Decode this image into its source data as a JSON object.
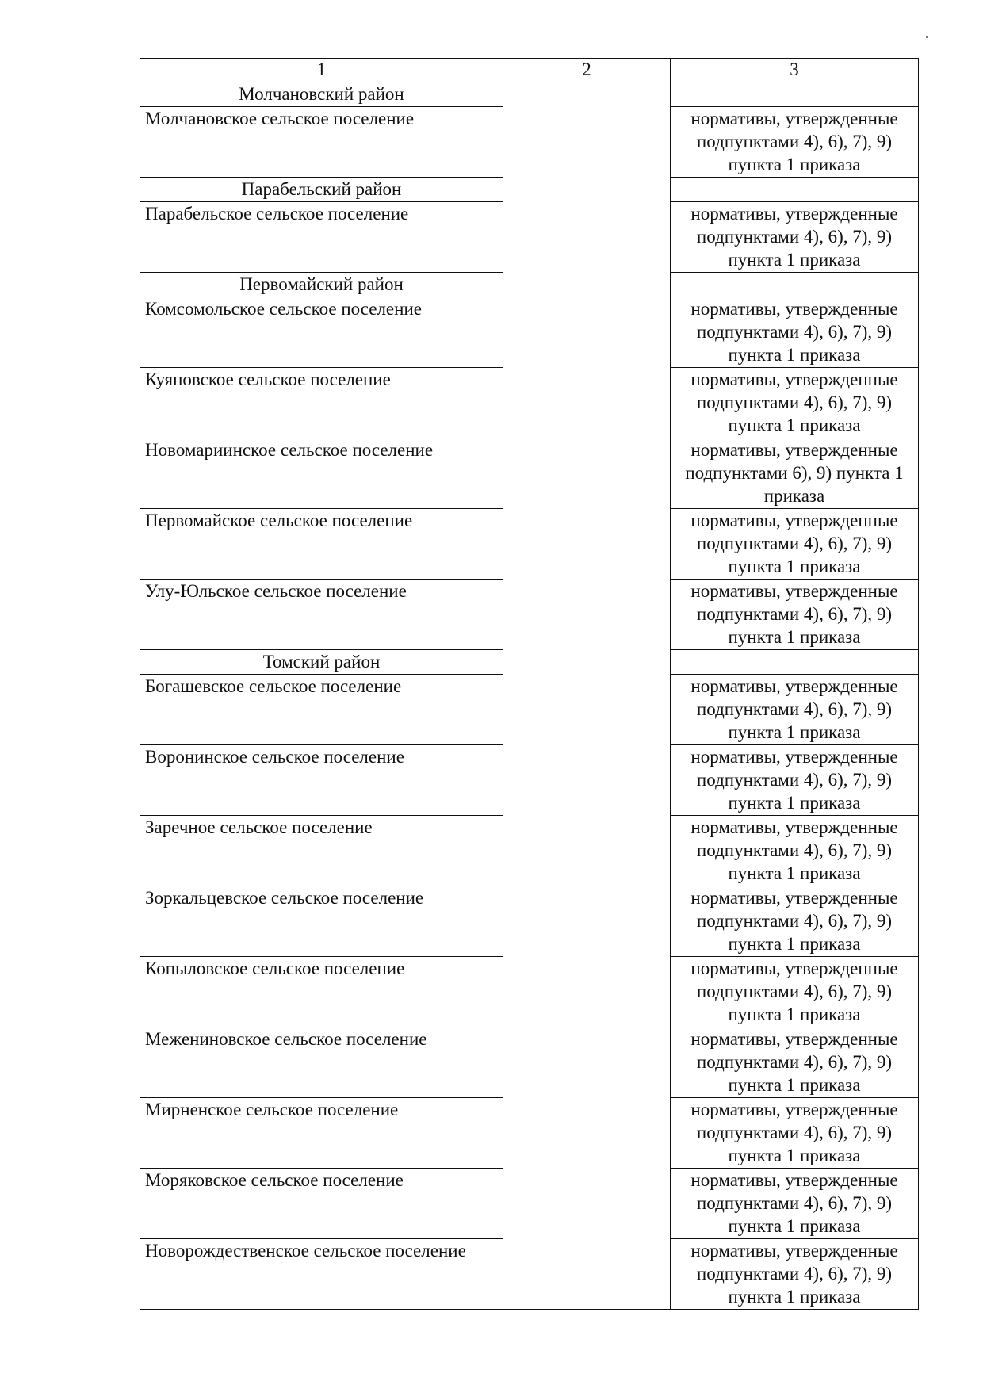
{
  "header": [
    "1",
    "2",
    "3"
  ],
  "rows": [
    {
      "type": "district",
      "name": "Молчановский район"
    },
    {
      "type": "data",
      "name": "Молчановское сельское поселение",
      "norm": "нормативы, утвержденные подпунктами 4), 6), 7), 9) пункта 1 приказа"
    },
    {
      "type": "district",
      "name": "Парабельский район"
    },
    {
      "type": "data",
      "name": "Парабельское сельское поселение",
      "norm": "нормативы, утвержденные подпунктами 4), 6), 7), 9) пункта 1 приказа"
    },
    {
      "type": "district",
      "name": "Первомайский район"
    },
    {
      "type": "data",
      "name": "Комсомольское сельское поселение",
      "norm": "нормативы, утвержденные подпунктами 4), 6), 7), 9) пункта 1 приказа"
    },
    {
      "type": "data",
      "name": "Куяновское сельское поселение",
      "norm": "нормативы, утвержденные подпунктами 4), 6), 7), 9) пункта 1 приказа"
    },
    {
      "type": "data",
      "name": "Новомариинское сельское поселение",
      "norm": "нормативы, утвержденные подпунктами 6), 9) пункта 1 приказа"
    },
    {
      "type": "data",
      "name": "Первомайское сельское поселение",
      "norm": "нормативы, утвержденные подпунктами 4), 6), 7), 9) пункта 1 приказа"
    },
    {
      "type": "data",
      "name": "Улу-Юльское сельское поселение",
      "norm": "нормативы, утвержденные подпунктами 4), 6), 7), 9) пункта 1 приказа"
    },
    {
      "type": "district",
      "name": "Томский район"
    },
    {
      "type": "data",
      "name": "Богашевское сельское поселение",
      "norm": "нормативы, утвержденные подпунктами 4), 6), 7), 9) пункта 1 приказа"
    },
    {
      "type": "data",
      "name": "Воронинское сельское поселение",
      "norm": "нормативы, утвержденные подпунктами 4), 6), 7), 9) пункта 1 приказа"
    },
    {
      "type": "data",
      "name": "Заречное сельское поселение",
      "norm": "нормативы, утвержденные подпунктами 4), 6), 7), 9) пункта 1 приказа"
    },
    {
      "type": "data",
      "name": "Зоркальцевское сельское поселение",
      "norm": "нормативы, утвержденные подпунктами 4), 6), 7), 9) пункта 1 приказа"
    },
    {
      "type": "data",
      "name": "Копыловское сельское поселение",
      "norm": "нормативы, утвержденные подпунктами 4), 6), 7), 9) пункта 1 приказа"
    },
    {
      "type": "data",
      "name": "Межениновское сельское поселение",
      "norm": "нормативы, утвержденные подпунктами 4), 6), 7), 9) пункта 1 приказа"
    },
    {
      "type": "data",
      "name": "Мирненское сельское поселение",
      "norm": "нормативы, утвержденные подпунктами 4), 6), 7), 9) пункта 1 приказа"
    },
    {
      "type": "data",
      "name": "Моряковское сельское поселение",
      "norm": "нормативы, утвержденные подпунктами 4), 6), 7), 9) пункта 1 приказа"
    },
    {
      "type": "data",
      "name": "Новорождественское сельское поселение",
      "norm": "нормативы, утвержденные подпунктами 4), 6), 7), 9) пункта 1 приказа"
    }
  ]
}
